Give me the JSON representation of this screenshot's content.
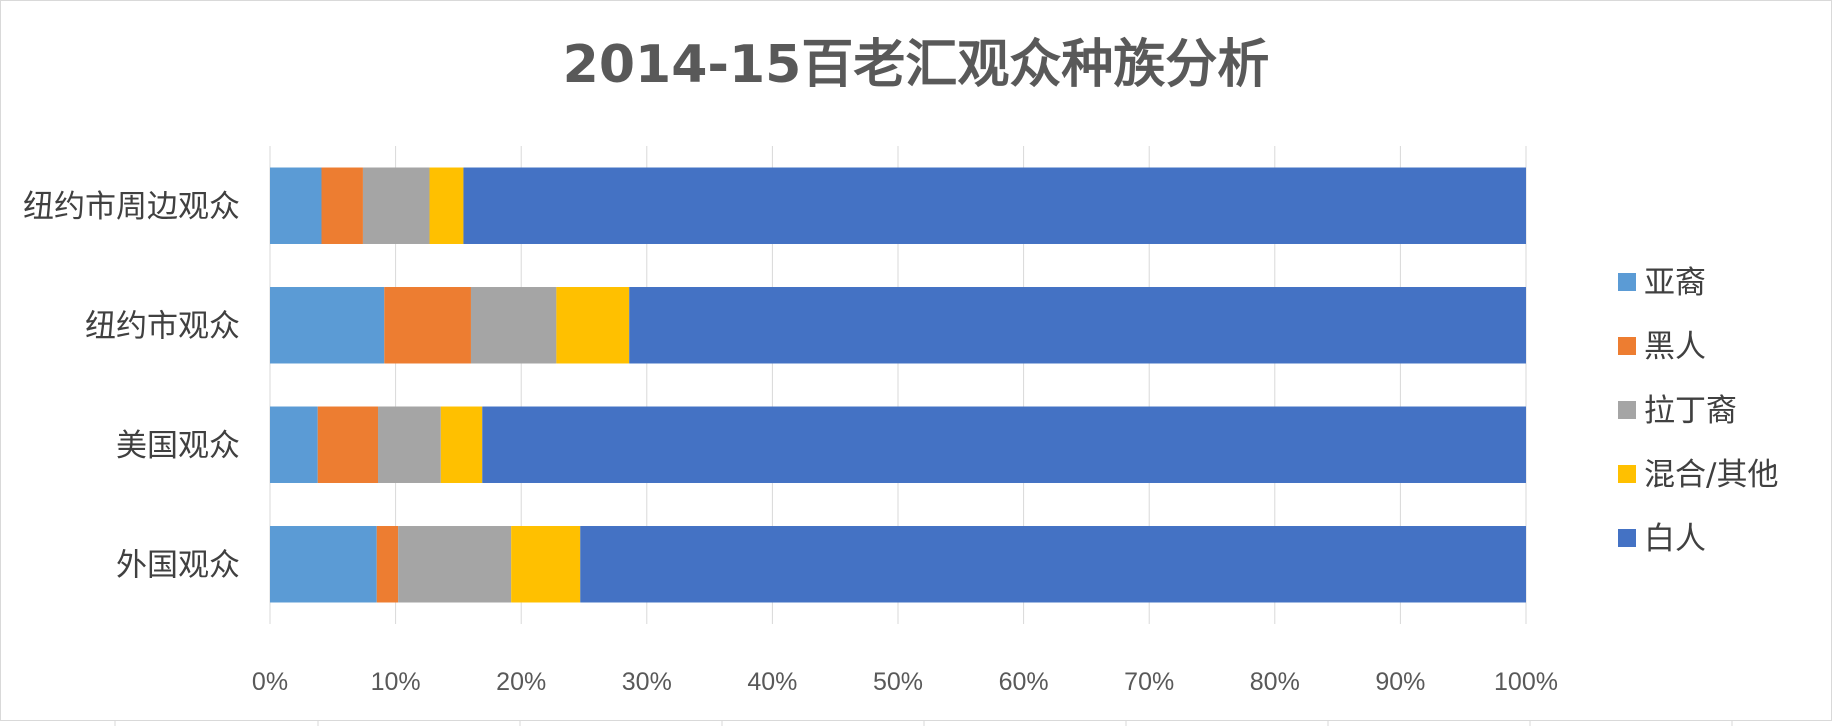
{
  "chart_data": {
    "type": "bar",
    "orientation": "horizontal",
    "stacked": "percent",
    "title": "2014-15百老汇观众种族分析",
    "categories": [
      "纽约市周边观众",
      "纽约市观众",
      "美国观众",
      "外国观众"
    ],
    "series": [
      {
        "name": "亚裔",
        "color": "#5B9BD5",
        "values": [
          4.1,
          9.1,
          3.8,
          8.5
        ]
      },
      {
        "name": "黑人",
        "color": "#ED7D31",
        "values": [
          3.3,
          6.9,
          4.8,
          1.7
        ]
      },
      {
        "name": "拉丁裔",
        "color": "#A5A5A5",
        "values": [
          5.3,
          6.8,
          5.0,
          9.0
        ]
      },
      {
        "name": "混合/其他",
        "color": "#FFC000",
        "values": [
          2.7,
          5.8,
          3.3,
          5.5
        ]
      },
      {
        "name": "白人",
        "color": "#4472C4",
        "values": [
          84.6,
          71.4,
          83.1,
          75.3
        ]
      }
    ],
    "x_ticks": [
      "0%",
      "10%",
      "20%",
      "30%",
      "40%",
      "50%",
      "60%",
      "70%",
      "80%",
      "90%",
      "100%"
    ],
    "xlim": [
      0,
      100
    ],
    "grid": true,
    "legend_position": "right"
  }
}
